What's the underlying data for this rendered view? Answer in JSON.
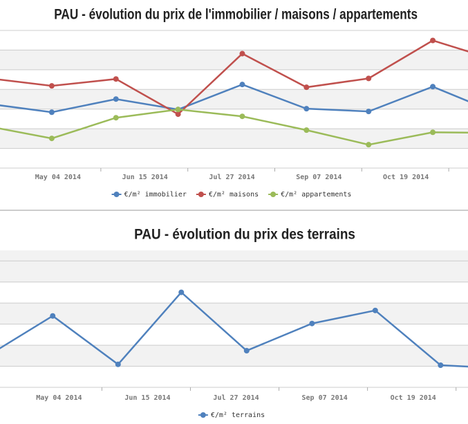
{
  "chart_data": [
    {
      "type": "line",
      "title": "PAU - évolution du prix de l'immobilier / maisons / appartements",
      "x": [
        "2014-04-01",
        "2014-05-01",
        "2014-06-01",
        "2014-07-01",
        "2014-08-01",
        "2014-09-01",
        "2014-10-01",
        "2014-11-01",
        "2014-12-01"
      ],
      "xlim": [
        "2014-04-06",
        "2014-11-18"
      ],
      "xticks": [
        {
          "value": "2014-05-04",
          "label": "May 04 2014"
        },
        {
          "value": "2014-06-15",
          "label": "Jun 15 2014"
        },
        {
          "value": "2014-07-27",
          "label": "Jul 27 2014"
        },
        {
          "value": "2014-09-07",
          "label": "Sep 07 2014"
        },
        {
          "value": "2014-10-19",
          "label": "Oct 19 2014"
        }
      ],
      "ylim": [
        0,
        7
      ],
      "yticks": [
        0,
        1,
        2,
        3,
        4,
        5,
        6,
        7
      ],
      "grid": true,
      "series": [
        {
          "name": "€/m² immobilier",
          "color": "#4f81bd",
          "values": [
            3.26,
            2.84,
            3.51,
            2.98,
            4.25,
            3.02,
            2.88,
            4.14,
            2.84
          ]
        },
        {
          "name": "€/m² maisons",
          "color": "#c0504d",
          "values": [
            4.56,
            4.18,
            4.53,
            2.74,
            5.82,
            4.11,
            4.56,
            6.49,
            5.51
          ]
        },
        {
          "name": "€/m² appartements",
          "color": "#9bbb59",
          "values": [
            2.11,
            1.51,
            2.56,
            2.98,
            2.63,
            1.93,
            1.19,
            1.82,
            1.79
          ]
        }
      ]
    },
    {
      "type": "line",
      "title": "PAU - évolution du prix des terrains",
      "x": [
        "2014-04-01",
        "2014-05-01",
        "2014-06-01",
        "2014-07-01",
        "2014-08-01",
        "2014-09-01",
        "2014-10-01",
        "2014-11-01",
        "2014-12-01"
      ],
      "xlim": [
        "2014-04-06",
        "2014-11-14"
      ],
      "xticks": [
        {
          "value": "2014-05-04",
          "label": "May 04 2014"
        },
        {
          "value": "2014-06-15",
          "label": "Jun 15 2014"
        },
        {
          "value": "2014-07-27",
          "label": "Jul 27 2014"
        },
        {
          "value": "2014-09-07",
          "label": "Sep 07 2014"
        },
        {
          "value": "2014-10-19",
          "label": "Oct 19 2014"
        }
      ],
      "ylim": [
        0,
        6.5
      ],
      "yticks": [
        0,
        1,
        2,
        3,
        4,
        5,
        6
      ],
      "grid": true,
      "series": [
        {
          "name": "€/m² terrains",
          "color": "#4f81bd",
          "values": [
            1.55,
            3.39,
            1.09,
            4.51,
            1.74,
            3.03,
            3.65,
            1.05,
            0.9
          ]
        }
      ]
    }
  ]
}
